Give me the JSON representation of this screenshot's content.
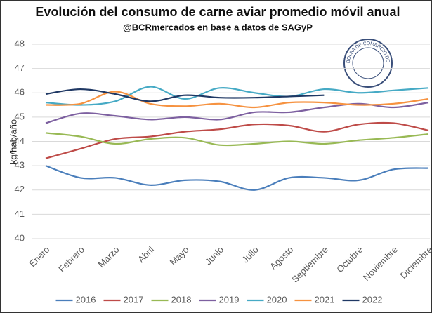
{
  "chart_data": {
    "type": "line",
    "title": "Evolución del consumo de carne aviar promedio móvil anual",
    "subtitle": "@BCRmercados en base a datos de SAGyP",
    "y_label": "kg/hab/año",
    "logo": "BOLSA DE COMERCIO DE ROSARIO",
    "categories": [
      "Enero",
      "Febrero",
      "Marzo",
      "Abril",
      "Mayo",
      "Junio",
      "Julio",
      "Agosto",
      "Septiembre",
      "Octubre",
      "Noviembre",
      "Diciembre"
    ],
    "ylim": [
      40,
      48
    ],
    "yticks": [
      40,
      41,
      42,
      43,
      44,
      45,
      46,
      47,
      48
    ],
    "grid": true,
    "legend": "bottom",
    "series": [
      {
        "name": "2016",
        "color": "#4a7ebb",
        "values": [
          43.0,
          42.5,
          42.5,
          42.2,
          42.4,
          42.35,
          42.0,
          42.5,
          42.5,
          42.4,
          42.85,
          42.9
        ]
      },
      {
        "name": "2017",
        "color": "#be4b48",
        "values": [
          43.3,
          43.7,
          44.1,
          44.2,
          44.4,
          44.5,
          44.7,
          44.65,
          44.4,
          44.7,
          44.75,
          44.45
        ]
      },
      {
        "name": "2018",
        "color": "#98b954",
        "values": [
          44.35,
          44.2,
          43.9,
          44.1,
          44.15,
          43.85,
          43.9,
          44.0,
          43.9,
          44.05,
          44.15,
          44.3
        ]
      },
      {
        "name": "2019",
        "color": "#7d60a0",
        "values": [
          44.75,
          45.15,
          45.05,
          44.9,
          45.0,
          44.9,
          45.2,
          45.2,
          45.4,
          45.55,
          45.4,
          45.6
        ]
      },
      {
        "name": "2020",
        "color": "#46aac5",
        "values": [
          45.6,
          45.5,
          45.65,
          46.25,
          45.75,
          46.2,
          46.0,
          45.85,
          46.15,
          46.0,
          46.1,
          46.2
        ]
      },
      {
        "name": "2021",
        "color": "#f69240",
        "values": [
          45.5,
          45.55,
          46.05,
          45.55,
          45.45,
          45.55,
          45.4,
          45.6,
          45.6,
          45.5,
          45.55,
          45.75
        ]
      },
      {
        "name": "2022",
        "color": "#1f3864",
        "values": [
          45.95,
          46.15,
          45.95,
          45.65,
          45.9,
          45.8,
          45.8,
          45.85,
          45.9,
          null,
          null,
          null
        ]
      }
    ]
  }
}
